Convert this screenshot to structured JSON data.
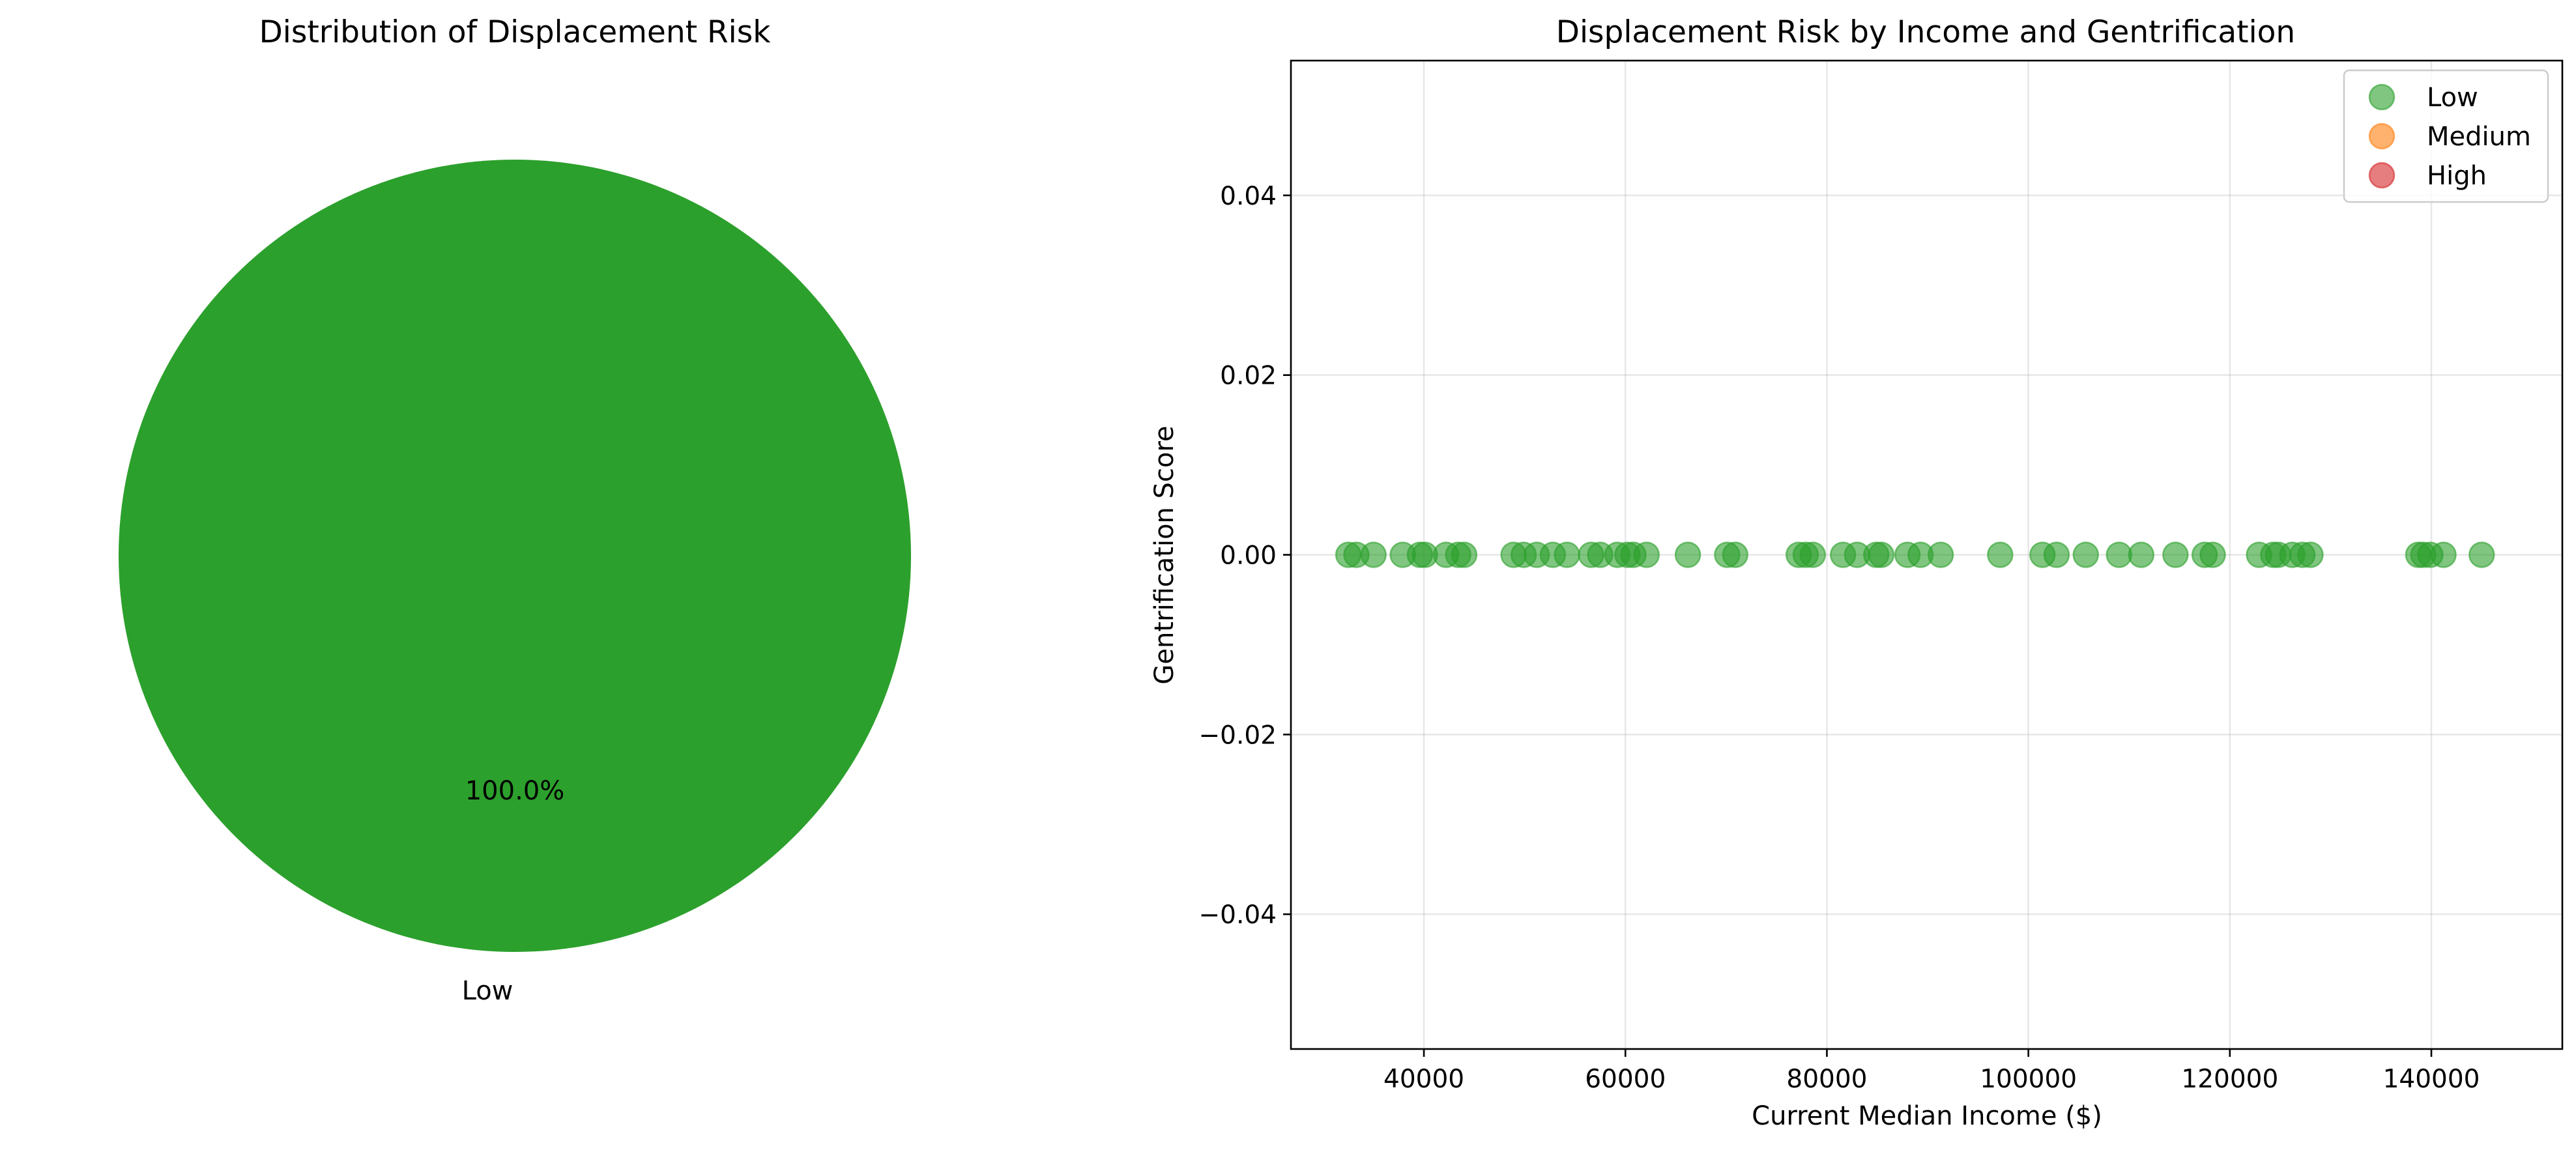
{
  "chart_data": [
    {
      "type": "pie",
      "title": "Distribution of Displacement Risk",
      "slices": [
        {
          "label": "Low",
          "value": 100.0,
          "pct_label": "100.0%",
          "color": "#2ca02c"
        }
      ]
    },
    {
      "type": "scatter",
      "title": "Displacement Risk by Income and Gentrification",
      "xlabel": "Current Median Income ($)",
      "ylabel": "Gentrification Score",
      "xlim": [
        26800,
        153000
      ],
      "ylim": [
        -0.055,
        0.055
      ],
      "xticks": [
        {
          "value": 40000,
          "label": "40000"
        },
        {
          "value": 60000,
          "label": "60000"
        },
        {
          "value": 80000,
          "label": "80000"
        },
        {
          "value": 100000,
          "label": "100000"
        },
        {
          "value": 120000,
          "label": "120000"
        },
        {
          "value": 140000,
          "label": "140000"
        }
      ],
      "yticks": [
        {
          "value": -0.04,
          "label": "−0.04"
        },
        {
          "value": -0.02,
          "label": "−0.02"
        },
        {
          "value": 0.0,
          "label": "0.00"
        },
        {
          "value": 0.02,
          "label": "0.02"
        },
        {
          "value": 0.04,
          "label": "0.04"
        }
      ],
      "grid": true,
      "legend_position": "top-right",
      "series": [
        {
          "name": "Low",
          "color": "#2ca02c",
          "points": [
            {
              "x": 32500,
              "y": 0
            },
            {
              "x": 33300,
              "y": 0
            },
            {
              "x": 35000,
              "y": 0
            },
            {
              "x": 37900,
              "y": 0
            },
            {
              "x": 39600,
              "y": 0
            },
            {
              "x": 40100,
              "y": 0
            },
            {
              "x": 42200,
              "y": 0
            },
            {
              "x": 43400,
              "y": 0
            },
            {
              "x": 44000,
              "y": 0
            },
            {
              "x": 48900,
              "y": 0
            },
            {
              "x": 49900,
              "y": 0
            },
            {
              "x": 51200,
              "y": 0
            },
            {
              "x": 52800,
              "y": 0
            },
            {
              "x": 54200,
              "y": 0
            },
            {
              "x": 56600,
              "y": 0
            },
            {
              "x": 57500,
              "y": 0
            },
            {
              "x": 59200,
              "y": 0
            },
            {
              "x": 60200,
              "y": 0
            },
            {
              "x": 60800,
              "y": 0
            },
            {
              "x": 62100,
              "y": 0
            },
            {
              "x": 66200,
              "y": 0
            },
            {
              "x": 70100,
              "y": 0
            },
            {
              "x": 70900,
              "y": 0
            },
            {
              "x": 77200,
              "y": 0
            },
            {
              "x": 77900,
              "y": 0
            },
            {
              "x": 78600,
              "y": 0
            },
            {
              "x": 81600,
              "y": 0
            },
            {
              "x": 83000,
              "y": 0
            },
            {
              "x": 84900,
              "y": 0
            },
            {
              "x": 85400,
              "y": 0
            },
            {
              "x": 88000,
              "y": 0
            },
            {
              "x": 89300,
              "y": 0
            },
            {
              "x": 91300,
              "y": 0
            },
            {
              "x": 97200,
              "y": 0
            },
            {
              "x": 101400,
              "y": 0
            },
            {
              "x": 102800,
              "y": 0
            },
            {
              "x": 105700,
              "y": 0
            },
            {
              "x": 109000,
              "y": 0
            },
            {
              "x": 111200,
              "y": 0
            },
            {
              "x": 114600,
              "y": 0
            },
            {
              "x": 117500,
              "y": 0
            },
            {
              "x": 118300,
              "y": 0
            },
            {
              "x": 122900,
              "y": 0
            },
            {
              "x": 124300,
              "y": 0
            },
            {
              "x": 124800,
              "y": 0
            },
            {
              "x": 126200,
              "y": 0
            },
            {
              "x": 127200,
              "y": 0
            },
            {
              "x": 128000,
              "y": 0
            },
            {
              "x": 138700,
              "y": 0
            },
            {
              "x": 139200,
              "y": 0
            },
            {
              "x": 139900,
              "y": 0
            },
            {
              "x": 141200,
              "y": 0
            },
            {
              "x": 145000,
              "y": 0
            }
          ]
        },
        {
          "name": "Medium",
          "color": "#ff7f0e",
          "points": []
        },
        {
          "name": "High",
          "color": "#d62728",
          "points": []
        }
      ]
    }
  ]
}
